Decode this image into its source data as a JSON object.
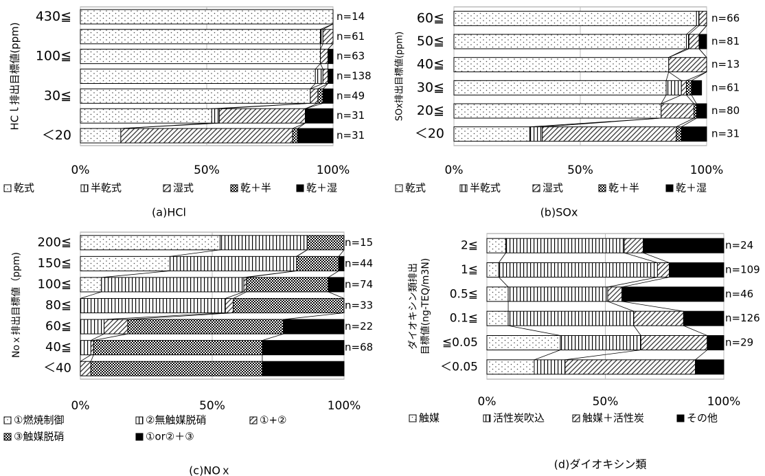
{
  "panels": {
    "axis_ticks": [
      "0%",
      "50%",
      "100%"
    ]
  },
  "chart_data": [
    {
      "type": "bar",
      "stacked": true,
      "orientation": "horizontal",
      "title": "(a)HCl",
      "ylabel": "HCｌ排出目標値(ppm)",
      "xlim": [
        0,
        100
      ],
      "x_ticks": [
        "0%",
        "50%",
        "100%"
      ],
      "grid": true,
      "legend_position": "bottom",
      "categories": [
        "430≦",
        "",
        "100≦",
        "",
        "30≦",
        "",
        "＜20"
      ],
      "n_labels": [
        "n=14",
        "n=61",
        "n=63",
        "n=138",
        "n=49",
        "n=31",
        "n=31"
      ],
      "series": [
        {
          "name": "乾式",
          "pattern": "dots",
          "values": [
            100,
            95,
            95,
            93,
            91,
            52,
            16
          ]
        },
        {
          "name": "半乾式",
          "pattern": "vstripes",
          "values": [
            0,
            1,
            0,
            3,
            0,
            3,
            0
          ]
        },
        {
          "name": "湿式",
          "pattern": "diag",
          "values": [
            0,
            4,
            3,
            2,
            3,
            34,
            68
          ]
        },
        {
          "name": "乾＋半",
          "pattern": "grid",
          "values": [
            0,
            0,
            0,
            0,
            2,
            0,
            2
          ]
        },
        {
          "name": "乾＋湿",
          "pattern": "solid",
          "values": [
            0,
            0,
            2,
            2,
            4,
            11,
            14
          ]
        }
      ]
    },
    {
      "type": "bar",
      "stacked": true,
      "orientation": "horizontal",
      "title": "(b)SOx",
      "ylabel": "SOx排出目標値(ppm)",
      "xlim": [
        0,
        100
      ],
      "x_ticks": [
        "0%",
        "50%",
        "100%"
      ],
      "grid": true,
      "legend_position": "bottom",
      "categories": [
        "60≦",
        "50≦",
        "40≦",
        "30≦",
        "20≦",
        "＜20"
      ],
      "n_labels": [
        "n=66",
        "n=81",
        "n=13",
        "n=61",
        "n=80",
        "n=31"
      ],
      "series": [
        {
          "name": "乾式",
          "pattern": "dots",
          "values": [
            96,
            92,
            85,
            84,
            82,
            30
          ]
        },
        {
          "name": "半乾式",
          "pattern": "vstripes",
          "values": [
            1,
            1,
            0,
            6,
            0,
            5
          ]
        },
        {
          "name": "湿式",
          "pattern": "diag",
          "values": [
            3,
            4,
            15,
            2,
            13,
            53
          ]
        },
        {
          "name": "乾＋半",
          "pattern": "grid",
          "values": [
            0,
            0,
            0,
            2,
            1,
            2
          ]
        },
        {
          "name": "乾＋湿",
          "pattern": "solid",
          "values": [
            0,
            3,
            0,
            4,
            4,
            10
          ]
        }
      ]
    },
    {
      "type": "bar",
      "stacked": true,
      "orientation": "horizontal",
      "title": "(c)NOｘ",
      "ylabel": "Noｘ排出目標値（ppm)",
      "xlim": [
        0,
        100
      ],
      "x_ticks": [
        "0%",
        "50%",
        "100%"
      ],
      "grid": true,
      "legend_position": "bottom",
      "categories": [
        "200≦",
        "150≦",
        "100≦",
        "80≦",
        "60≦",
        "40≦",
        "＜40"
      ],
      "n_labels": [
        "n=15",
        "n=44",
        "n=74",
        "n=33",
        "n=22",
        "n=68",
        ""
      ],
      "series": [
        {
          "name": "①燃焼制御",
          "pattern": "dots",
          "values": [
            53,
            34,
            8,
            0,
            0,
            0,
            0
          ]
        },
        {
          "name": "②無触媒脱硝",
          "pattern": "vstripes",
          "values": [
            33,
            48,
            54,
            55,
            9,
            4,
            0
          ]
        },
        {
          "name": "①+②",
          "pattern": "diag",
          "values": [
            0,
            0,
            1,
            3,
            9,
            1,
            4
          ]
        },
        {
          "name": "③触媒脱硝",
          "pattern": "grid",
          "values": [
            14,
            16,
            31,
            42,
            59,
            64,
            65
          ]
        },
        {
          "name": "①or②＋③",
          "pattern": "solid",
          "values": [
            0,
            2,
            6,
            0,
            23,
            31,
            31
          ]
        }
      ]
    },
    {
      "type": "bar",
      "stacked": true,
      "orientation": "horizontal",
      "title": "(d)ダイオキシン類",
      "ylabel": "ダイオキシン類排出目標値(ng-TEQ/m3N)",
      "xlim": [
        0,
        100
      ],
      "x_ticks": [
        "0%",
        "50%",
        "100%"
      ],
      "grid": true,
      "legend_position": "bottom",
      "categories": [
        "2≦",
        "1≦",
        "0.5≦",
        "0.1≦",
        "≦0.05",
        "＜0.05"
      ],
      "n_labels": [
        "n=24",
        "n=109",
        "n=46",
        "n=126",
        "n=29",
        ""
      ],
      "series": [
        {
          "name": "触媒",
          "pattern": "dots",
          "values": [
            8,
            5,
            9,
            9,
            31,
            20
          ]
        },
        {
          "name": "活性炭吹込",
          "pattern": "vstripes",
          "values": [
            50,
            67,
            42,
            53,
            34,
            13
          ]
        },
        {
          "name": "触媒＋活性炭",
          "pattern": "diag",
          "values": [
            8,
            5,
            6,
            21,
            28,
            55
          ]
        },
        {
          "name": "その他",
          "pattern": "solid",
          "values": [
            34,
            23,
            43,
            17,
            7,
            12
          ]
        }
      ]
    }
  ]
}
